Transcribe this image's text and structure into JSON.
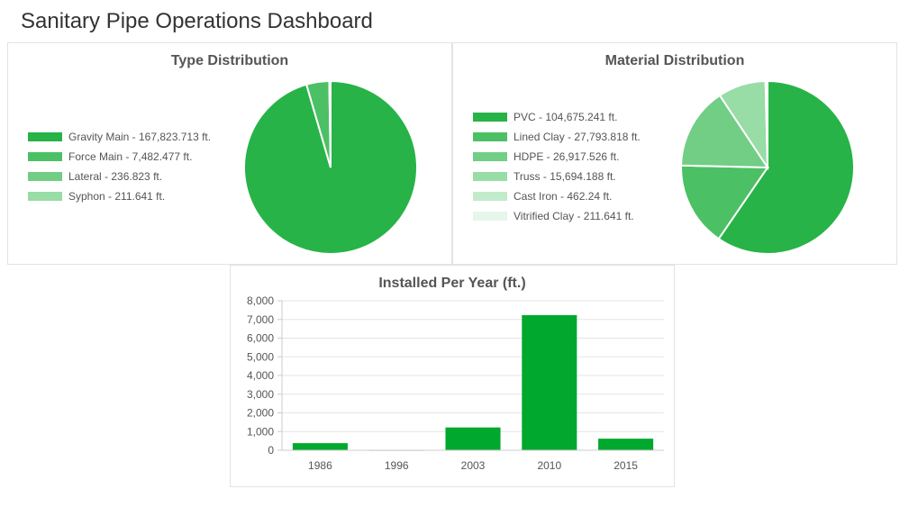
{
  "page": {
    "title": "Sanitary Pipe Operations Dashboard"
  },
  "colors": {
    "green_1": "#27b347",
    "green_2": "#4cc064",
    "green_3": "#72cd85",
    "green_4": "#98dca6",
    "green_5": "#c2ebca",
    "green_6": "#e6f6ea",
    "bar": "#00a82d"
  },
  "chart_data": [
    {
      "type": "pie",
      "title": "Type Distribution",
      "legend_position": "left",
      "slices": [
        {
          "label": "Gravity Main",
          "value": 167823.713,
          "legend": "Gravity Main - 167,823.713 ft.",
          "color": "#27b347"
        },
        {
          "label": "Force Main",
          "value": 7482.477,
          "legend": "Force Main - 7,482.477 ft.",
          "color": "#4cc064"
        },
        {
          "label": "Lateral",
          "value": 236.823,
          "legend": "Lateral - 236.823 ft.",
          "color": "#72cd85"
        },
        {
          "label": "Syphon",
          "value": 211.641,
          "legend": "Syphon - 211.641 ft.",
          "color": "#98dca6"
        }
      ]
    },
    {
      "type": "pie",
      "title": "Material Distribution",
      "legend_position": "left",
      "slices": [
        {
          "label": "PVC",
          "value": 104675.241,
          "legend": "PVC - 104,675.241 ft.",
          "color": "#27b347"
        },
        {
          "label": "Lined Clay",
          "value": 27793.818,
          "legend": "Lined Clay - 27,793.818 ft.",
          "color": "#4cc064"
        },
        {
          "label": "HDPE",
          "value": 26917.526,
          "legend": "HDPE - 26,917.526 ft.",
          "color": "#72cd85"
        },
        {
          "label": "Truss",
          "value": 15694.188,
          "legend": "Truss - 15,694.188 ft.",
          "color": "#98dca6"
        },
        {
          "label": "Cast Iron",
          "value": 462.24,
          "legend": "Cast Iron - 462.24 ft.",
          "color": "#c2ebca"
        },
        {
          "label": "Vitrified Clay",
          "value": 211.641,
          "legend": "Vitrified Clay - 211.641 ft.",
          "color": "#e6f6ea"
        }
      ]
    },
    {
      "type": "bar",
      "title": "Installed Per Year (ft.)",
      "categories": [
        "1986",
        "1996",
        "2003",
        "2010",
        "2015"
      ],
      "values": [
        380,
        20,
        1220,
        7230,
        620
      ],
      "ylim": [
        0,
        8000
      ],
      "yticks": [
        0,
        1000,
        2000,
        3000,
        4000,
        5000,
        6000,
        7000,
        8000
      ],
      "ytick_labels": [
        "0",
        "1,000",
        "2,000",
        "3,000",
        "4,000",
        "5,000",
        "6,000",
        "7,000",
        "8,000"
      ],
      "xlabel": "",
      "ylabel": "",
      "grid": true
    }
  ]
}
